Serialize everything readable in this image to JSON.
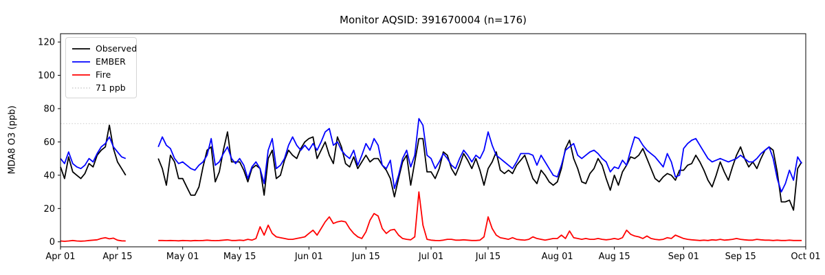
{
  "title": "Monitor AQSID: 391670004 (n=176)",
  "legend": {
    "items": [
      {
        "id": "observed",
        "label": "Observed",
        "color": "#000000",
        "style": "solid"
      },
      {
        "id": "ember",
        "label": "EMBER",
        "color": "#0000ff",
        "style": "solid"
      },
      {
        "id": "fire",
        "label": "Fire",
        "color": "#ff0000",
        "style": "solid"
      },
      {
        "id": "threshold",
        "label": "71 ppb",
        "color": "#d3d3d3",
        "style": "dotted"
      }
    ],
    "position": "upper-left"
  },
  "chart_data": {
    "type": "line",
    "title": "Monitor AQSID: 391670004 (n=176)",
    "xlabel": "",
    "ylabel": "MDA8 O3 (ppb)",
    "x_unit": "days since Apr 01",
    "xlim": [
      0,
      183
    ],
    "ylim": [
      -3,
      125
    ],
    "yticks": [
      0,
      20,
      40,
      60,
      80,
      100,
      120
    ],
    "xticks": [
      {
        "pos": 0,
        "label": "Apr 01"
      },
      {
        "pos": 14,
        "label": "Apr 15"
      },
      {
        "pos": 30,
        "label": "May 01"
      },
      {
        "pos": 44,
        "label": "May 15"
      },
      {
        "pos": 61,
        "label": "Jun 01"
      },
      {
        "pos": 75,
        "label": "Jun 15"
      },
      {
        "pos": 91,
        "label": "Jul 01"
      },
      {
        "pos": 105,
        "label": "Jul 15"
      },
      {
        "pos": 122,
        "label": "Aug 01"
      },
      {
        "pos": 136,
        "label": "Aug 15"
      },
      {
        "pos": 153,
        "label": "Sep 01"
      },
      {
        "pos": 167,
        "label": "Sep 15"
      },
      {
        "pos": 183,
        "label": "Oct 01"
      }
    ],
    "threshold": {
      "value": 71,
      "label": "71 ppb",
      "color": "#d3d3d3",
      "style": "dotted"
    },
    "grid": false,
    "data_gap_days": "Apr 18 - Apr 24",
    "n_points": 176,
    "series": [
      {
        "name": "Observed",
        "color": "#000000",
        "values": [
          45,
          38,
          51,
          42,
          40,
          38,
          41,
          47,
          45,
          52,
          55,
          57,
          70,
          56,
          48,
          44,
          40,
          null,
          null,
          null,
          null,
          null,
          null,
          null,
          50,
          44,
          34,
          52,
          48,
          38,
          38,
          33,
          28,
          28,
          33,
          45,
          55,
          57,
          36,
          42,
          55,
          66,
          48,
          48,
          48,
          43,
          36,
          44,
          46,
          44,
          28,
          50,
          55,
          38,
          40,
          49,
          55,
          52,
          50,
          56,
          60,
          62,
          63,
          50,
          55,
          60,
          52,
          47,
          63,
          57,
          47,
          45,
          51,
          44,
          48,
          52,
          48,
          50,
          50,
          46,
          43,
          38,
          27,
          38,
          48,
          52,
          34,
          48,
          62,
          62,
          42,
          42,
          38,
          44,
          54,
          52,
          44,
          40,
          46,
          53,
          49,
          44,
          50,
          43,
          34,
          44,
          48,
          54,
          43,
          41,
          43,
          41,
          46,
          49,
          52,
          45,
          38,
          35,
          43,
          40,
          36,
          34,
          36,
          44,
          56,
          61,
          50,
          44,
          36,
          35,
          41,
          44,
          50,
          46,
          38,
          31,
          40,
          34,
          42,
          46,
          51,
          50,
          52,
          56,
          50,
          44,
          38,
          36,
          39,
          41,
          40,
          37,
          43,
          43,
          46,
          47,
          52,
          48,
          43,
          37,
          33,
          40,
          48,
          42,
          37,
          45,
          52,
          57,
          50,
          45,
          48,
          44,
          50,
          55,
          57,
          55,
          42,
          24,
          24,
          25,
          19,
          44,
          48
        ]
      },
      {
        "name": "EMBER",
        "color": "#0000ff",
        "values": [
          50,
          47,
          54,
          47,
          45,
          44,
          46,
          50,
          48,
          53,
          57,
          59,
          63,
          57,
          54,
          51,
          50,
          null,
          null,
          null,
          null,
          null,
          null,
          null,
          57,
          63,
          58,
          56,
          50,
          47,
          48,
          46,
          44,
          43,
          46,
          48,
          52,
          62,
          46,
          48,
          53,
          57,
          50,
          47,
          50,
          46,
          38,
          45,
          48,
          44,
          35,
          55,
          62,
          44,
          46,
          50,
          58,
          63,
          58,
          55,
          58,
          55,
          59,
          55,
          60,
          66,
          68,
          58,
          60,
          55,
          52,
          50,
          55,
          46,
          52,
          59,
          55,
          62,
          58,
          46,
          44,
          49,
          32,
          40,
          50,
          55,
          45,
          52,
          74,
          70,
          52,
          50,
          44,
          48,
          53,
          50,
          46,
          44,
          50,
          55,
          52,
          48,
          52,
          50,
          55,
          66,
          58,
          52,
          50,
          48,
          46,
          44,
          48,
          53,
          53,
          53,
          52,
          46,
          52,
          48,
          44,
          40,
          39,
          46,
          55,
          57,
          59,
          52,
          50,
          52,
          54,
          55,
          53,
          50,
          48,
          42,
          45,
          44,
          49,
          46,
          55,
          63,
          62,
          58,
          55,
          53,
          51,
          48,
          45,
          53,
          48,
          39,
          40,
          56,
          59,
          61,
          62,
          58,
          54,
          50,
          48,
          49,
          50,
          49,
          48,
          49,
          50,
          52,
          50,
          48,
          48,
          50,
          53,
          55,
          57,
          50,
          38,
          30,
          35,
          43,
          37,
          51,
          47
        ]
      },
      {
        "name": "Fire",
        "color": "#ff0000",
        "values": [
          0.5,
          0.3,
          0.5,
          0.8,
          0.5,
          0.4,
          0.5,
          0.8,
          1,
          1.2,
          2,
          2.5,
          1.8,
          2.2,
          1,
          0.6,
          0.5,
          null,
          null,
          null,
          null,
          null,
          null,
          null,
          0.8,
          0.8,
          0.7,
          0.8,
          0.7,
          0.6,
          0.8,
          0.7,
          0.6,
          0.8,
          0.7,
          0.8,
          1,
          0.8,
          0.7,
          0.8,
          1,
          1.2,
          0.8,
          0.8,
          1,
          0.8,
          1.5,
          1,
          2,
          9,
          4,
          10,
          5,
          3,
          2.5,
          2,
          1.5,
          1.5,
          2,
          2.5,
          3,
          5,
          7,
          4,
          8,
          12,
          15,
          11,
          12,
          12.5,
          12,
          8,
          5,
          3,
          2,
          6,
          13,
          17,
          15.5,
          8,
          5,
          7,
          7.5,
          4,
          2,
          1.5,
          1.2,
          3,
          30,
          10,
          1.5,
          1,
          0.8,
          0.7,
          1,
          1.5,
          1.5,
          1,
          1,
          1.2,
          1,
          0.8,
          0.8,
          1,
          3,
          15,
          8,
          4,
          2.5,
          2,
          1.5,
          2.5,
          1.5,
          1.2,
          1,
          1.5,
          3,
          2,
          1.5,
          1,
          1.5,
          2,
          2,
          4,
          2,
          6.5,
          2.5,
          2,
          1.5,
          2,
          1.5,
          1.5,
          2,
          1.5,
          1.2,
          1.5,
          2,
          1.5,
          2.5,
          7,
          4.5,
          3.5,
          3,
          2,
          3.5,
          2,
          1.5,
          1.2,
          1.5,
          2.5,
          2,
          4,
          3,
          2,
          1.5,
          1.2,
          1,
          0.8,
          1,
          0.8,
          1.2,
          1,
          1.5,
          1,
          1.2,
          1.5,
          2,
          1.5,
          1.2,
          1,
          1,
          1.5,
          1.2,
          1,
          1,
          0.8,
          1,
          0.8,
          0.8,
          1,
          0.8,
          0.8,
          0.8
        ]
      }
    ]
  }
}
